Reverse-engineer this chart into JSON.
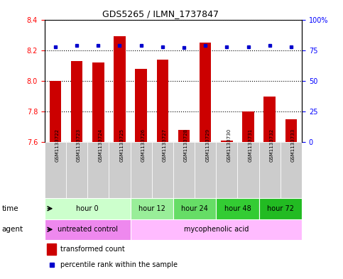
{
  "title": "GDS5265 / ILMN_1737847",
  "samples": [
    "GSM1133722",
    "GSM1133723",
    "GSM1133724",
    "GSM1133725",
    "GSM1133726",
    "GSM1133727",
    "GSM1133728",
    "GSM1133729",
    "GSM1133730",
    "GSM1133731",
    "GSM1133732",
    "GSM1133733"
  ],
  "bar_values": [
    8.0,
    8.13,
    8.12,
    8.29,
    8.08,
    8.14,
    7.68,
    8.25,
    7.61,
    7.8,
    7.9,
    7.75
  ],
  "dot_values": [
    78,
    79,
    79,
    79,
    79,
    78,
    77,
    79,
    78,
    78,
    79,
    78
  ],
  "ylim_left": [
    7.6,
    8.4
  ],
  "ylim_right": [
    0,
    100
  ],
  "yticks_left": [
    7.6,
    7.8,
    8.0,
    8.2,
    8.4
  ],
  "yticks_right": [
    0,
    25,
    50,
    75,
    100
  ],
  "bar_color": "#cc0000",
  "dot_color": "#0000cc",
  "bar_bottom": 7.6,
  "time_groups": [
    {
      "label": "hour 0",
      "start": 0,
      "end": 3,
      "color": "#ccffcc"
    },
    {
      "label": "hour 12",
      "start": 4,
      "end": 5,
      "color": "#99ee99"
    },
    {
      "label": "hour 24",
      "start": 6,
      "end": 7,
      "color": "#66dd66"
    },
    {
      "label": "hour 48",
      "start": 8,
      "end": 9,
      "color": "#33cc33"
    },
    {
      "label": "hour 72",
      "start": 10,
      "end": 11,
      "color": "#22bb22"
    }
  ],
  "agent_groups": [
    {
      "label": "untreated control",
      "start": 0,
      "end": 3,
      "color": "#ee88ee"
    },
    {
      "label": "mycophenolic acid",
      "start": 4,
      "end": 11,
      "color": "#ffbbff"
    }
  ],
  "legend_bar_label": "transformed count",
  "legend_dot_label": "percentile rank within the sample",
  "sample_bg_color": "#cccccc",
  "plot_bg_color": "#ffffff",
  "grid_color": "#000000"
}
